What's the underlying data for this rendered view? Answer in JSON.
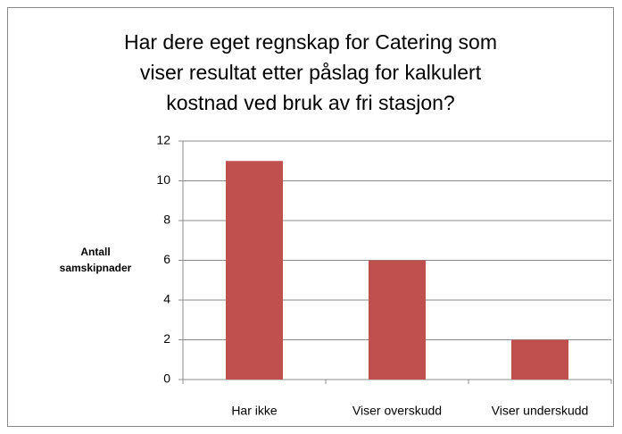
{
  "chart_data": {
    "type": "bar",
    "title": "Har dere eget regnskap for Catering som\nviser resultat etter påslag for kalkulert\nkostnad ved bruk av fri stasjon?",
    "ylabel": "Antall\nsamskipnader",
    "categories": [
      "Har ikke",
      "Viser overskudd",
      "Viser underskudd"
    ],
    "values": [
      11,
      6,
      2
    ],
    "color": "#c0504d",
    "ylim": [
      0,
      12
    ],
    "yticks": [
      0,
      2,
      4,
      6,
      8,
      10,
      12
    ],
    "grid": true
  }
}
